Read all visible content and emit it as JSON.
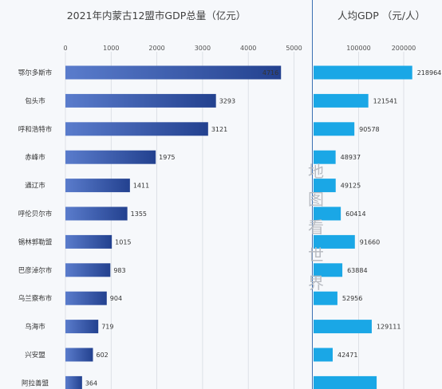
{
  "watermark": [
    "地",
    "图",
    "看",
    "世",
    "界"
  ],
  "chart_data": [
    {
      "type": "bar",
      "orientation": "horizontal",
      "title": "2021年内蒙古12盟市GDP总量（亿元）",
      "categories": [
        "鄂尔多斯市",
        "包头市",
        "呼和浩特市",
        "赤峰市",
        "通辽市",
        "呼伦贝尔市",
        "锡林郭勒盟",
        "巴彦淖尔市",
        "乌兰察布市",
        "乌海市",
        "兴安盟",
        "阿拉善盟"
      ],
      "values": [
        4716,
        3293,
        3121,
        1975,
        1411,
        1355,
        1015,
        983,
        904,
        719,
        602,
        364
      ],
      "xlim": [
        0,
        5000
      ],
      "xticks": [
        "0",
        "1000",
        "2000",
        "3000",
        "4000",
        "5000"
      ],
      "xtick_values": [
        0,
        1000,
        2000,
        3000,
        4000,
        5000
      ],
      "color": "#3a5fb4",
      "grid": true
    },
    {
      "type": "bar",
      "orientation": "horizontal",
      "title": "人均GDP （元/人）",
      "categories": [
        "鄂尔多斯市",
        "包头市",
        "呼和浩特市",
        "赤峰市",
        "通辽市",
        "呼伦贝尔市",
        "锡林郭勒盟",
        "巴彦淖尔市",
        "乌兰察布市",
        "乌海市",
        "兴安盟",
        "阿拉善盟"
      ],
      "values": [
        218964,
        121541,
        90578,
        48937,
        49125,
        60414,
        91660,
        63884,
        52956,
        129111,
        42471,
        140000
      ],
      "value_labels": [
        "218964",
        "121541",
        "90578",
        "48937",
        "49125",
        "60414",
        "91660",
        "63884",
        "52956",
        "129111",
        "42471",
        ""
      ],
      "xlim": [
        0,
        270000
      ],
      "xticks": [
        "100000",
        "200000"
      ],
      "xtick_values": [
        100000,
        200000
      ],
      "color": "#1aa7e6",
      "grid": true
    }
  ]
}
